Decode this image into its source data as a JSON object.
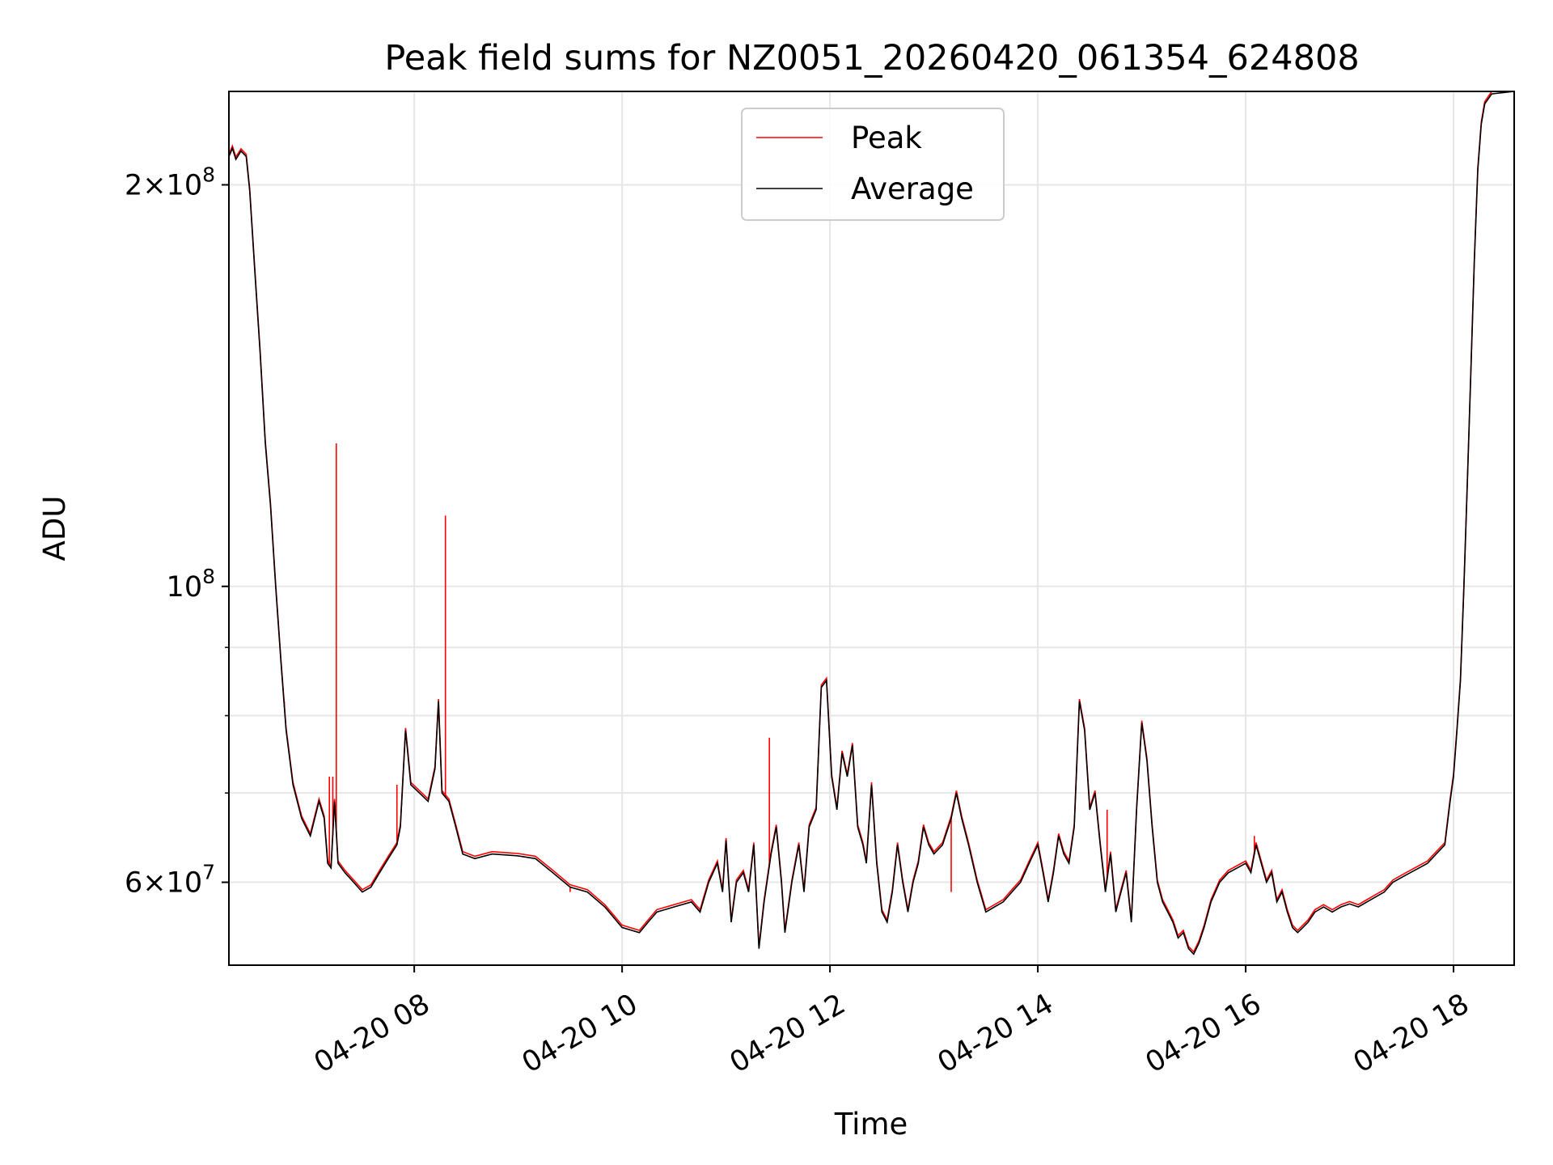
{
  "chart_data": {
    "type": "line",
    "title": "Peak field sums for NZ0051_20260420_061354_624808",
    "xlabel": "Time",
    "ylabel": "ADU",
    "y_scale": "log",
    "ylim": [
      52000000,
      235000000
    ],
    "xlim": [
      "04-20 06:13",
      "04-20 18:35"
    ],
    "grid": true,
    "legend_position": "top-center",
    "x_ticks": [
      {
        "label": "04-20 08",
        "t": "08:00"
      },
      {
        "label": "04-20 10",
        "t": "10:00"
      },
      {
        "label": "04-20 12",
        "t": "12:00"
      },
      {
        "label": "04-20 14",
        "t": "14:00"
      },
      {
        "label": "04-20 16",
        "t": "16:00"
      },
      {
        "label": "04-20 18",
        "t": "18:00"
      }
    ],
    "y_major_ticks": [
      {
        "value": 60000000,
        "mantissa": "6",
        "exponent": "7"
      },
      {
        "value": 100000000,
        "mantissa": "",
        "exponent": "8"
      },
      {
        "value": 200000000,
        "mantissa": "2",
        "exponent": "8"
      }
    ],
    "y_minor_ticks": [
      70000000,
      80000000,
      90000000
    ],
    "series": [
      {
        "name": "Peak",
        "color": "#ff0000",
        "spikes": [
          [
            "06:33",
            135000000
          ],
          [
            "06:45",
            82000000
          ],
          [
            "07:15",
            128000000
          ],
          [
            "07:11",
            72000000
          ],
          [
            "07:13",
            72000000
          ],
          [
            "07:50",
            71000000
          ],
          [
            "08:18",
            113000000
          ],
          [
            "09:30",
            59000000
          ],
          [
            "11:25",
            77000000
          ],
          [
            "13:10",
            59000000
          ],
          [
            "14:40",
            68000000
          ],
          [
            "16:05",
            65000000
          ]
        ]
      },
      {
        "name": "Average",
        "color": "#000000",
        "points": [
          [
            "06:13",
            210000000
          ],
          [
            "06:15",
            213000000
          ],
          [
            "06:17",
            209000000
          ],
          [
            "06:20",
            212000000
          ],
          [
            "06:23",
            210000000
          ],
          [
            "06:25",
            198000000
          ],
          [
            "06:28",
            172000000
          ],
          [
            "06:31",
            150000000
          ],
          [
            "06:34",
            128000000
          ],
          [
            "06:37",
            115000000
          ],
          [
            "06:40",
            100000000
          ],
          [
            "06:43",
            88000000
          ],
          [
            "06:46",
            78000000
          ],
          [
            "06:50",
            71000000
          ],
          [
            "06:55",
            67000000
          ],
          [
            "07:00",
            65000000
          ],
          [
            "07:05",
            69000000
          ],
          [
            "07:08",
            67000000
          ],
          [
            "07:10",
            62000000
          ],
          [
            "07:12",
            61500000
          ],
          [
            "07:14",
            69000000
          ],
          [
            "07:16",
            62000000
          ],
          [
            "07:20",
            61000000
          ],
          [
            "07:25",
            60000000
          ],
          [
            "07:30",
            59000000
          ],
          [
            "07:35",
            59500000
          ],
          [
            "07:40",
            61000000
          ],
          [
            "07:45",
            62500000
          ],
          [
            "07:50",
            64000000
          ],
          [
            "07:52",
            66000000
          ],
          [
            "07:55",
            78000000
          ],
          [
            "07:58",
            71000000
          ],
          [
            "08:03",
            70000000
          ],
          [
            "08:08",
            69000000
          ],
          [
            "08:12",
            73000000
          ],
          [
            "08:14",
            82000000
          ],
          [
            "08:16",
            70000000
          ],
          [
            "08:20",
            69000000
          ],
          [
            "08:24",
            66000000
          ],
          [
            "08:28",
            63000000
          ],
          [
            "08:35",
            62500000
          ],
          [
            "08:45",
            63000000
          ],
          [
            "09:00",
            62800000
          ],
          [
            "09:10",
            62500000
          ],
          [
            "09:20",
            61000000
          ],
          [
            "09:30",
            59500000
          ],
          [
            "09:40",
            59000000
          ],
          [
            "09:50",
            57500000
          ],
          [
            "10:00",
            55500000
          ],
          [
            "10:10",
            55000000
          ],
          [
            "10:15",
            56000000
          ],
          [
            "10:20",
            57000000
          ],
          [
            "10:30",
            57500000
          ],
          [
            "10:40",
            58000000
          ],
          [
            "10:45",
            57000000
          ],
          [
            "10:50",
            60000000
          ],
          [
            "10:55",
            62000000
          ],
          [
            "10:58",
            59000000
          ],
          [
            "11:00",
            64500000
          ],
          [
            "11:03",
            56000000
          ],
          [
            "11:06",
            60000000
          ],
          [
            "11:10",
            61000000
          ],
          [
            "11:13",
            59000000
          ],
          [
            "11:16",
            64000000
          ],
          [
            "11:19",
            53500000
          ],
          [
            "11:22",
            58000000
          ],
          [
            "11:26",
            63000000
          ],
          [
            "11:29",
            66000000
          ],
          [
            "11:32",
            60000000
          ],
          [
            "11:34",
            55000000
          ],
          [
            "11:38",
            60000000
          ],
          [
            "11:42",
            64000000
          ],
          [
            "11:45",
            59000000
          ],
          [
            "11:48",
            66000000
          ],
          [
            "11:52",
            68000000
          ],
          [
            "11:55",
            84000000
          ],
          [
            "11:58",
            85000000
          ],
          [
            "12:01",
            72000000
          ],
          [
            "12:04",
            68000000
          ],
          [
            "12:07",
            75000000
          ],
          [
            "12:10",
            72000000
          ],
          [
            "12:13",
            76000000
          ],
          [
            "12:16",
            66000000
          ],
          [
            "12:19",
            64000000
          ],
          [
            "12:21",
            62000000
          ],
          [
            "12:24",
            71000000
          ],
          [
            "12:27",
            62000000
          ],
          [
            "12:30",
            57000000
          ],
          [
            "12:33",
            56000000
          ],
          [
            "12:36",
            59000000
          ],
          [
            "12:39",
            64000000
          ],
          [
            "12:42",
            60000000
          ],
          [
            "12:45",
            57000000
          ],
          [
            "12:48",
            60000000
          ],
          [
            "12:51",
            62000000
          ],
          [
            "12:54",
            66000000
          ],
          [
            "12:57",
            64000000
          ],
          [
            "13:00",
            63000000
          ],
          [
            "13:05",
            64000000
          ],
          [
            "13:10",
            67000000
          ],
          [
            "13:13",
            70000000
          ],
          [
            "13:16",
            67000000
          ],
          [
            "13:20",
            64000000
          ],
          [
            "13:25",
            60000000
          ],
          [
            "13:30",
            57000000
          ],
          [
            "13:35",
            57500000
          ],
          [
            "13:40",
            58000000
          ],
          [
            "13:45",
            59000000
          ],
          [
            "13:50",
            60000000
          ],
          [
            "13:55",
            62000000
          ],
          [
            "14:00",
            64000000
          ],
          [
            "14:03",
            61000000
          ],
          [
            "14:06",
            58000000
          ],
          [
            "14:09",
            61000000
          ],
          [
            "14:12",
            65000000
          ],
          [
            "14:15",
            63000000
          ],
          [
            "14:18",
            62000000
          ],
          [
            "14:21",
            66000000
          ],
          [
            "14:24",
            82000000
          ],
          [
            "14:27",
            78000000
          ],
          [
            "14:30",
            68000000
          ],
          [
            "14:33",
            70000000
          ],
          [
            "14:36",
            64000000
          ],
          [
            "14:39",
            59000000
          ],
          [
            "14:42",
            63000000
          ],
          [
            "14:45",
            57000000
          ],
          [
            "14:48",
            59000000
          ],
          [
            "14:51",
            61000000
          ],
          [
            "14:54",
            56000000
          ],
          [
            "14:57",
            68000000
          ],
          [
            "15:00",
            79000000
          ],
          [
            "15:03",
            74000000
          ],
          [
            "15:06",
            66000000
          ],
          [
            "15:09",
            60000000
          ],
          [
            "15:12",
            58000000
          ],
          [
            "15:15",
            57000000
          ],
          [
            "15:18",
            56000000
          ],
          [
            "15:21",
            54500000
          ],
          [
            "15:24",
            55000000
          ],
          [
            "15:27",
            53500000
          ],
          [
            "15:30",
            53000000
          ],
          [
            "15:33",
            54000000
          ],
          [
            "15:36",
            55500000
          ],
          [
            "15:40",
            58000000
          ],
          [
            "15:45",
            60000000
          ],
          [
            "15:50",
            61000000
          ],
          [
            "15:55",
            61500000
          ],
          [
            "16:00",
            62000000
          ],
          [
            "16:03",
            61000000
          ],
          [
            "16:06",
            64000000
          ],
          [
            "16:09",
            62000000
          ],
          [
            "16:12",
            60000000
          ],
          [
            "16:15",
            61000000
          ],
          [
            "16:18",
            58000000
          ],
          [
            "16:21",
            59000000
          ],
          [
            "16:24",
            57000000
          ],
          [
            "16:27",
            55500000
          ],
          [
            "16:30",
            55000000
          ],
          [
            "16:33",
            55500000
          ],
          [
            "16:36",
            56000000
          ],
          [
            "16:40",
            57000000
          ],
          [
            "16:45",
            57500000
          ],
          [
            "16:50",
            57000000
          ],
          [
            "16:55",
            57500000
          ],
          [
            "17:00",
            57800000
          ],
          [
            "17:05",
            57500000
          ],
          [
            "17:10",
            58000000
          ],
          [
            "17:15",
            58500000
          ],
          [
            "17:20",
            59000000
          ],
          [
            "17:25",
            60000000
          ],
          [
            "17:30",
            60500000
          ],
          [
            "17:35",
            61000000
          ],
          [
            "17:40",
            61500000
          ],
          [
            "17:45",
            62000000
          ],
          [
            "17:50",
            63000000
          ],
          [
            "17:55",
            64000000
          ],
          [
            "17:58",
            69000000
          ],
          [
            "18:00",
            72000000
          ],
          [
            "18:02",
            78000000
          ],
          [
            "18:04",
            85000000
          ],
          [
            "18:06",
            100000000
          ],
          [
            "18:08",
            120000000
          ],
          [
            "18:10",
            145000000
          ],
          [
            "18:12",
            175000000
          ],
          [
            "18:14",
            205000000
          ],
          [
            "18:16",
            222000000
          ],
          [
            "18:18",
            230000000
          ],
          [
            "18:22",
            234000000
          ],
          [
            "18:35",
            235000000
          ]
        ]
      }
    ]
  }
}
